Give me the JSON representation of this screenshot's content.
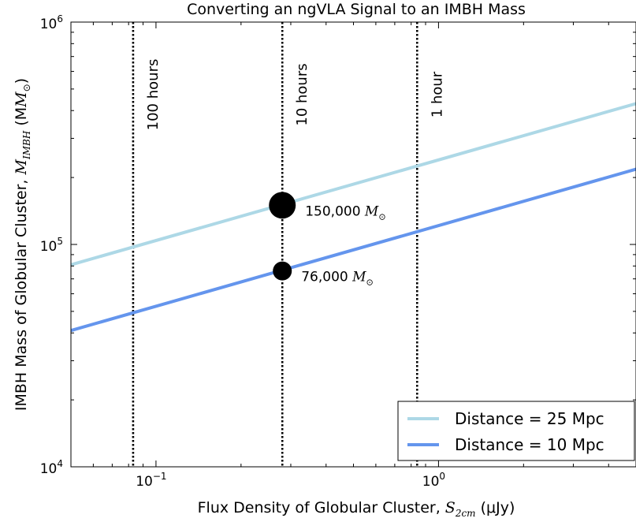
{
  "chart_data": {
    "type": "line",
    "title": "Converting an ngVLA Signal to an IMBH Mass",
    "xlabel": "Flux Density of Globular Cluster, ",
    "xlabel_symbol": "S",
    "xlabel_sub": "2cm",
    "xlabel_unit": " (μJy)",
    "ylabel": "IMBH Mass of Globular Cluster, ",
    "ylabel_symbol": "M",
    "ylabel_sub": "IMBH",
    "ylabel_unit": " (M",
    "ylabel_unit_close": ")",
    "xscale": "log",
    "yscale": "log",
    "xlim": [
      0.05,
      5.0
    ],
    "ylim": [
      10000,
      1000000
    ],
    "x_ticks": [
      {
        "value": 0.1,
        "base": "10",
        "exp": "−1"
      },
      {
        "value": 1.0,
        "base": "10",
        "exp": "0"
      }
    ],
    "y_ticks": [
      {
        "value": 10000,
        "base": "10",
        "exp": "4"
      },
      {
        "value": 100000,
        "base": "10",
        "exp": "5"
      },
      {
        "value": 1000000,
        "base": "10",
        "exp": "6"
      }
    ],
    "series": [
      {
        "name": "Distance = 25 Mpc",
        "color": "#add8e6",
        "x": [
          0.05,
          5.0
        ],
        "y": [
          81000,
          430000
        ]
      },
      {
        "name": "Distance = 10 Mpc",
        "color": "#6495ed",
        "x": [
          0.05,
          5.0
        ],
        "y": [
          41000,
          218000
        ]
      }
    ],
    "vlines": [
      {
        "x": 0.083,
        "label": "100 hours"
      },
      {
        "x": 0.28,
        "label": "10 hours"
      },
      {
        "x": 0.84,
        "label": "1 hour"
      }
    ],
    "markers": [
      {
        "x": 0.28,
        "y": 150000,
        "label": "150,000",
        "unit_symbol": "M",
        "unit_sub": "⊙",
        "size": "large"
      },
      {
        "x": 0.28,
        "y": 76000,
        "label": "76,000",
        "unit_symbol": "M",
        "unit_sub": "⊙",
        "size": "small"
      }
    ],
    "legend": {
      "position": "lower-right"
    },
    "grid": false
  }
}
